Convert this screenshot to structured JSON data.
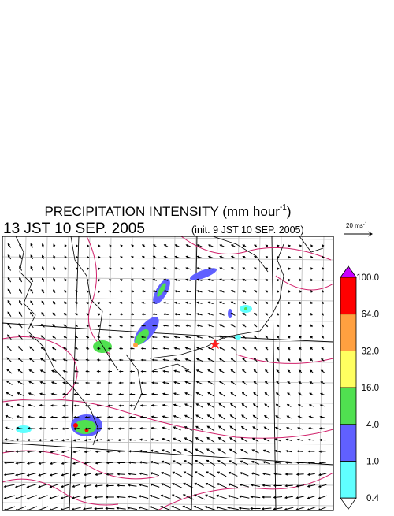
{
  "title": {
    "main": "PRECIPITATION INTENSITY (mm hour",
    "sup": "-1",
    "end": ")"
  },
  "valid_time": "13 JST 10 SEP. 2005",
  "init_time": "(init. 9 JST 10 SEP. 2005)",
  "reference_vector": {
    "main": "20 ms",
    "sup": "-1"
  },
  "colorbar": {
    "labels": [
      "100.0",
      "64.0",
      "32.0",
      "16.0",
      "4.0",
      "1.0",
      "0.4"
    ],
    "colors": [
      "#c800ff",
      "#ff0000",
      "#ffa040",
      "#ffff60",
      "#50e050",
      "#6060ff",
      "#60ffff",
      "#ffffff"
    ]
  }
}
